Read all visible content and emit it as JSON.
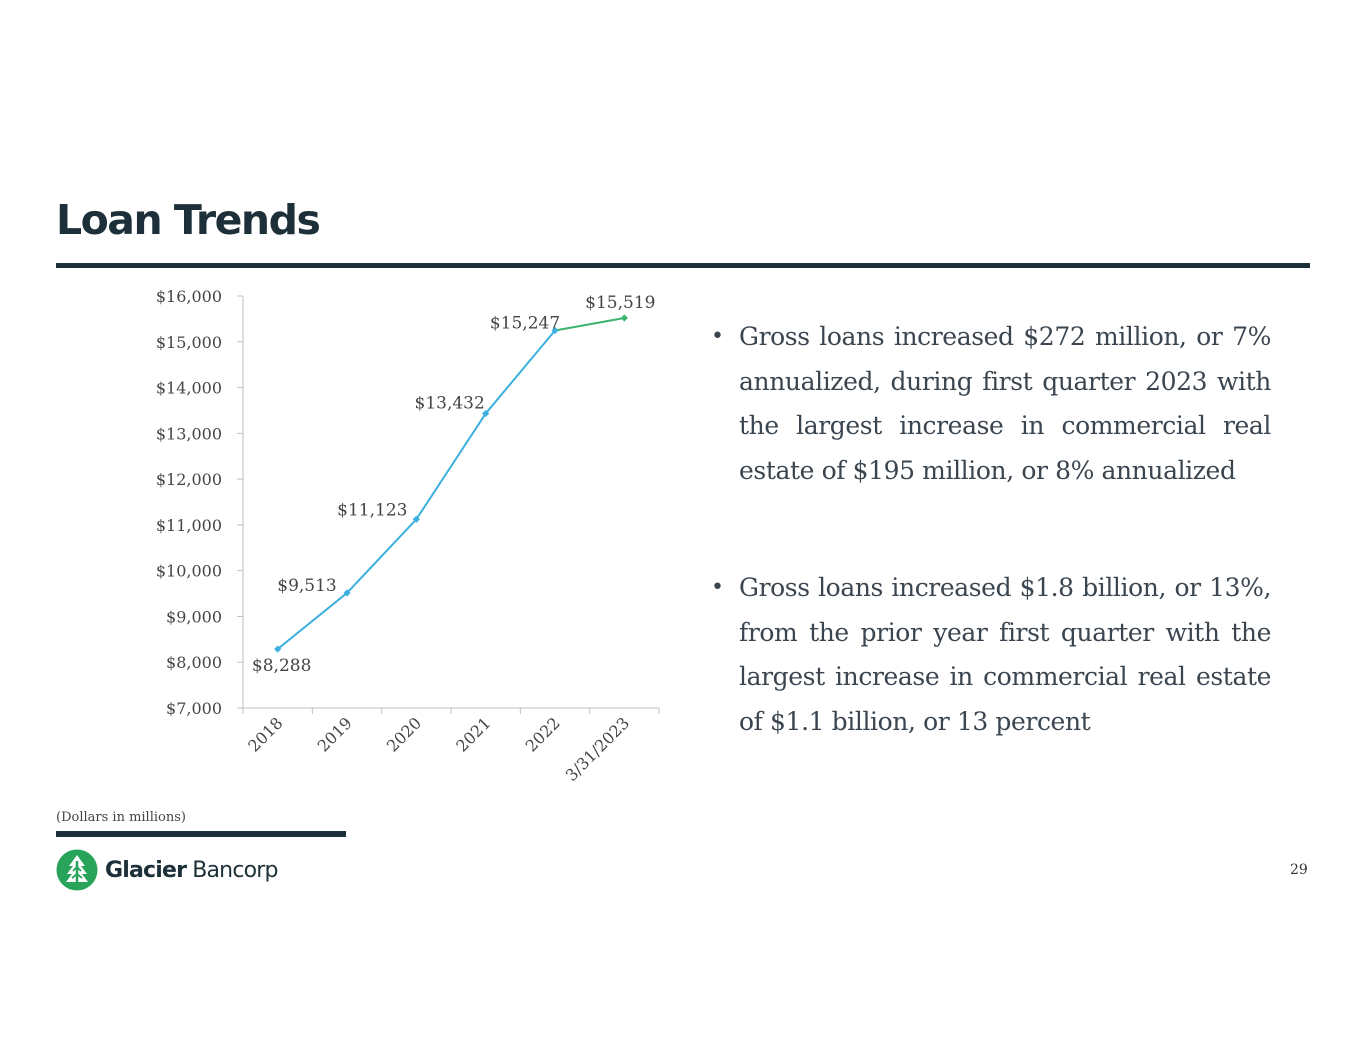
{
  "slide": {
    "title": "Loan Trends",
    "footnote": "(Dollars in millions)",
    "page_number": "29"
  },
  "logo": {
    "text_bold": "Glacier",
    "text_light": "Bancorp",
    "brand_color": "#27a35a"
  },
  "bullets": [
    "Gross loans increased $272 million, or 7% annualized, during first quarter 2023 with the largest increase in commercial real estate of $195 million, or 8% annualized",
    "Gross loans increased $1.8 billion, or 13%, from the prior year first quarter with the largest increase in commercial real estate of $1.1 billion, or 13 percent"
  ],
  "chart_data": {
    "type": "line",
    "categories": [
      "2018",
      "2019",
      "2020",
      "2021",
      "2022",
      "3/31/2023"
    ],
    "values": [
      8288,
      9513,
      11123,
      13432,
      15247,
      15519
    ],
    "data_labels": [
      "$8,288",
      "$9,513",
      "$11,123",
      "$13,432",
      "$15,247",
      "$15,519"
    ],
    "ylim": [
      7000,
      16000
    ],
    "y_ticks": [
      7000,
      8000,
      9000,
      10000,
      11000,
      12000,
      13000,
      14000,
      15000,
      16000
    ],
    "y_tick_labels": [
      "$7,000",
      "$8,000",
      "$9,000",
      "$10,000",
      "$11,000",
      "$12,000",
      "$13,000",
      "$14,000",
      "$15,000",
      "$16,000"
    ],
    "series_colors": [
      "#3cb0de",
      "#3cb46e"
    ],
    "highlighted_last_segment": true,
    "grid": false,
    "legend": "none",
    "title": "",
    "xlabel": "",
    "ylabel": ""
  }
}
